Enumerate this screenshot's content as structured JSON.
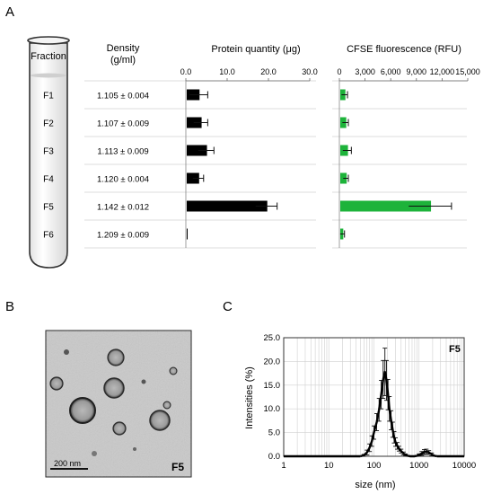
{
  "panels": {
    "a": "A",
    "b": "B",
    "c": "C"
  },
  "tube": {
    "label": "Fraction"
  },
  "density": {
    "header_line1": "Density",
    "header_line2": "(g/ml)"
  },
  "colors": {
    "protein_bar": "#000000",
    "cfse_bar": "#1db33a",
    "row_band": "#dcdcdc",
    "grid": "#d0d0d0"
  },
  "micrograph": {
    "scale_label": "200 nm",
    "fraction_label": "F5"
  },
  "chart_data": [
    {
      "type": "bar",
      "orientation": "horizontal",
      "title": "Protein quantity (μg)",
      "categories": [
        "F1",
        "F2",
        "F3",
        "F4",
        "F5",
        "F6"
      ],
      "densities": [
        "1.105 ± 0.004",
        "1.107 ± 0.009",
        "1.113 ± 0.009",
        "1.120 ± 0.004",
        "1.142 ± 0.012",
        "1.209 ± 0.009"
      ],
      "values": [
        3.1,
        3.6,
        4.9,
        3.0,
        19.5,
        0.2
      ],
      "errors": [
        2.2,
        1.7,
        1.9,
        1.3,
        2.6,
        0.0
      ],
      "xlim": [
        0,
        30
      ],
      "xticks": [
        "0.0",
        "10.0",
        "20.0",
        "30.0"
      ]
    },
    {
      "type": "bar",
      "orientation": "horizontal",
      "title": "CFSE fluorescence (RFU)",
      "categories": [
        "F1",
        "F2",
        "F3",
        "F4",
        "F5",
        "F6"
      ],
      "values": [
        600,
        700,
        900,
        750,
        10600,
        350
      ],
      "errors": [
        350,
        350,
        500,
        300,
        2500,
        250
      ],
      "xlim": [
        0,
        15000
      ],
      "xticks": [
        "0",
        "3,000",
        "6,000",
        "9,000",
        "12,000",
        "15,000"
      ]
    },
    {
      "type": "line",
      "title": "F5",
      "xlabel": "size (nm)",
      "ylabel": "Intensities (%)",
      "xscale": "log",
      "xlim": [
        1,
        10000
      ],
      "ylim": [
        0,
        25
      ],
      "xticks": [
        "1",
        "10",
        "100",
        "1000",
        "10000"
      ],
      "yticks": [
        "0.0",
        "5.0",
        "10.0",
        "15.0",
        "20.0",
        "25.0"
      ],
      "x": [
        50,
        60,
        70,
        80,
        90,
        100,
        115,
        130,
        145,
        160,
        175,
        190,
        205,
        220,
        240,
        260,
        280,
        300,
        330,
        360,
        400,
        450,
        500,
        560,
        630,
        700,
        800,
        900,
        1000,
        1150,
        1300,
        1450,
        1650,
        1900,
        2200,
        2500
      ],
      "y": [
        0.0,
        0.2,
        0.8,
        1.8,
        3.2,
        5.0,
        7.2,
        9.8,
        13.0,
        16.2,
        17.8,
        16.0,
        13.0,
        10.0,
        7.6,
        5.6,
        4.0,
        3.0,
        2.2,
        1.6,
        1.1,
        0.6,
        0.3,
        0.1,
        0.0,
        0.0,
        0.0,
        0.1,
        0.3,
        0.6,
        0.9,
        1.0,
        0.8,
        0.4,
        0.1,
        0.0
      ],
      "err": [
        0.0,
        0.2,
        0.5,
        0.8,
        1.1,
        1.4,
        1.8,
        2.4,
        3.0,
        4.0,
        5.0,
        4.2,
        3.2,
        2.6,
        2.0,
        1.6,
        1.2,
        0.9,
        0.7,
        0.5,
        0.4,
        0.3,
        0.2,
        0.1,
        0.0,
        0.0,
        0.0,
        0.1,
        0.2,
        0.4,
        0.5,
        0.5,
        0.4,
        0.3,
        0.1,
        0.0
      ],
      "grid": true
    }
  ]
}
